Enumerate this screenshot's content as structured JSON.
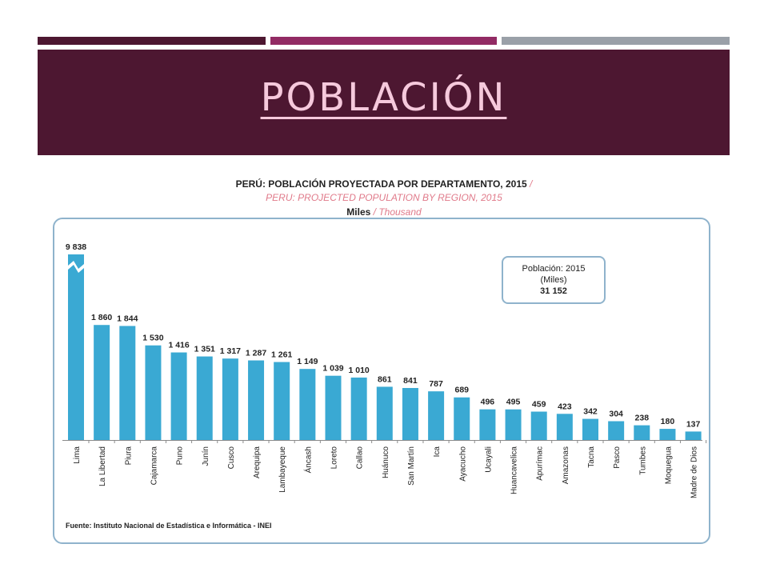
{
  "header": {
    "title": "POBLACIÓN"
  },
  "colors": {
    "banner": "#4d1731",
    "strip_mid": "#922b64",
    "strip_right": "#9aa0a8",
    "title_text": "#f6c9dc",
    "bar": "#3aa9d3",
    "frame": "#8fb3cc"
  },
  "chart_data": {
    "type": "bar",
    "title": "PERÚ: POBLACIÓN PROYECTADA POR DEPARTAMENTO, 2015",
    "title_sep": "/",
    "subtitle": "PERU: PROJECTED POPULATION BY REGION, 2015",
    "units": "Miles",
    "units_sep": "/ Thousand",
    "categories": [
      "Lima",
      "La Libertad",
      "Piura",
      "Cajamarca",
      "Puno",
      "Junín",
      "Cusco",
      "Arequipa",
      "Lambayeque",
      "Áncash",
      "Loreto",
      "Callao",
      "Huánuco",
      "San Martín",
      "Ica",
      "Ayacucho",
      "Ucayali",
      "Huancavelica",
      "Apurímac",
      "Amazonas",
      "Tacna",
      "Pasco",
      "Tumbes",
      "Moquegua",
      "Madre de Dios"
    ],
    "values": [
      9838,
      1860,
      1844,
      1530,
      1416,
      1351,
      1317,
      1287,
      1261,
      1149,
      1039,
      1010,
      861,
      841,
      787,
      689,
      496,
      495,
      459,
      423,
      342,
      304,
      238,
      180,
      137
    ],
    "value_labels": [
      "9 838",
      "1 860",
      "1 844",
      "1 530",
      "1 416",
      "1 351",
      "1 317",
      "1 287",
      "1 261",
      "1 149",
      "1 039",
      "1 010",
      "861",
      "841",
      "787",
      "689",
      "496",
      "495",
      "459",
      "423",
      "342",
      "304",
      "238",
      "180",
      "137"
    ],
    "axis_note": "broken axis on Lima bar",
    "legend_box": {
      "line1": "Población: 2015",
      "line2": "(Miles)",
      "total": "31 152"
    },
    "source": "Fuente: Instituto Nacional de Estadística e Informática - INEI"
  }
}
